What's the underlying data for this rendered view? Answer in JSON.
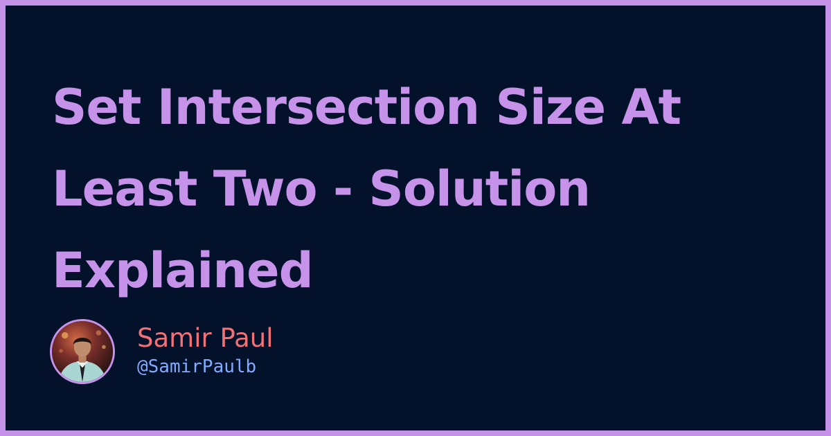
{
  "post": {
    "title": "Set Intersection Size At Least Two - Solution Explained"
  },
  "author": {
    "name": "Samir Paul",
    "handle": "@SamirPaulb"
  },
  "colors": {
    "border": "#c792ea",
    "background": "#03122a",
    "title": "#c792ea",
    "author_name": "#f07178",
    "author_handle": "#82aaff"
  }
}
